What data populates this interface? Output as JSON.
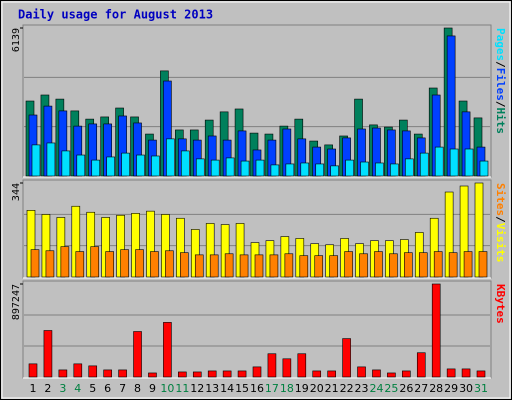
{
  "chart_data": {
    "type": "bar",
    "title": "Daily usage for August 2013",
    "categories": [
      "1",
      "2",
      "3",
      "4",
      "5",
      "6",
      "7",
      "8",
      "9",
      "10",
      "11",
      "12",
      "13",
      "14",
      "15",
      "16",
      "17",
      "18",
      "19",
      "20",
      "21",
      "22",
      "23",
      "24",
      "25",
      "26",
      "27",
      "28",
      "29",
      "30",
      "31"
    ],
    "category_colors": [
      "#000000",
      "#000000",
      "#008040",
      "#008040",
      "#000000",
      "#000000",
      "#000000",
      "#000000",
      "#000000",
      "#008040",
      "#008040",
      "#000000",
      "#000000",
      "#000000",
      "#000000",
      "#000000",
      "#008040",
      "#008040",
      "#000000",
      "#000000",
      "#000000",
      "#000000",
      "#000000",
      "#008040",
      "#008040",
      "#000000",
      "#000000",
      "#000000",
      "#000000",
      "#000000",
      "#008040"
    ],
    "title_color": "#0000c0",
    "legend_separator": "/",
    "panels": [
      {
        "ylim": [
          0,
          6139
        ],
        "yticks": [
          6139
        ],
        "series": [
          {
            "name": "Hits",
            "color": "#00805c",
            "values": [
              3110,
              3360,
              3190,
              2700,
              2360,
              2450,
              2820,
              2450,
              1740,
              4360,
              1910,
              1910,
              2320,
              2660,
              2780,
              1780,
              1740,
              2070,
              2360,
              1450,
              1290,
              1660,
              3190,
              2120,
              2030,
              2320,
              1740,
              3650,
              6139,
              3110,
              2410
            ]
          },
          {
            "name": "Files",
            "color": "#0040ff",
            "values": [
              2530,
              2900,
              2700,
              2070,
              2160,
              2160,
              2490,
              2200,
              1490,
              3940,
              1540,
              1490,
              1660,
              1490,
              1870,
              1080,
              1490,
              1950,
              1540,
              1200,
              1120,
              1580,
              1950,
              1990,
              1910,
              1870,
              1580,
              3360,
              5810,
              2660,
              1200
            ]
          },
          {
            "name": "Pages",
            "color": "#00e0ff",
            "values": [
              1290,
              1370,
              1040,
              870,
              660,
              790,
              950,
              870,
              830,
              1540,
              1040,
              710,
              660,
              750,
              620,
              660,
              460,
              500,
              540,
              500,
              420,
              660,
              580,
              540,
              500,
              710,
              950,
              1200,
              1120,
              1120,
              620
            ]
          }
        ]
      },
      {
        "ylim": [
          0,
          344
        ],
        "yticks": [
          344
        ],
        "series": [
          {
            "name": "Visits",
            "color": "#ffff00",
            "values": [
              244,
              229,
              218,
              259,
              237,
              218,
              226,
              233,
              241,
              229,
              215,
              174,
              196,
              192,
              196,
              126,
              133,
              148,
              141,
              122,
              118,
              141,
              122,
              133,
              133,
              137,
              163,
              215,
              311,
              333,
              344
            ]
          },
          {
            "name": "Sites",
            "color": "#ff8000",
            "values": [
              100,
              96,
              111,
              93,
              111,
              93,
              100,
              100,
              93,
              96,
              89,
              81,
              81,
              85,
              81,
              81,
              81,
              85,
              78,
              78,
              78,
              93,
              85,
              93,
              85,
              89,
              89,
              93,
              89,
              93,
              93
            ]
          }
        ]
      },
      {
        "ylim": [
          0,
          897247
        ],
        "yticks": [
          897247
        ],
        "series": [
          {
            "name": "KBytes",
            "color": "#ff0000",
            "values": [
              126800,
              448600,
              68300,
              126800,
              107300,
              68300,
              68300,
              438900,
              39000,
              526700,
              48800,
              48800,
              58500,
              58500,
              58500,
              97500,
              224300,
              175600,
              224300,
              58500,
              58500,
              370600,
              97500,
              68300,
              39000,
              58500,
              234100,
              897247,
              78000,
              78000,
              58500
            ]
          }
        ]
      }
    ]
  }
}
